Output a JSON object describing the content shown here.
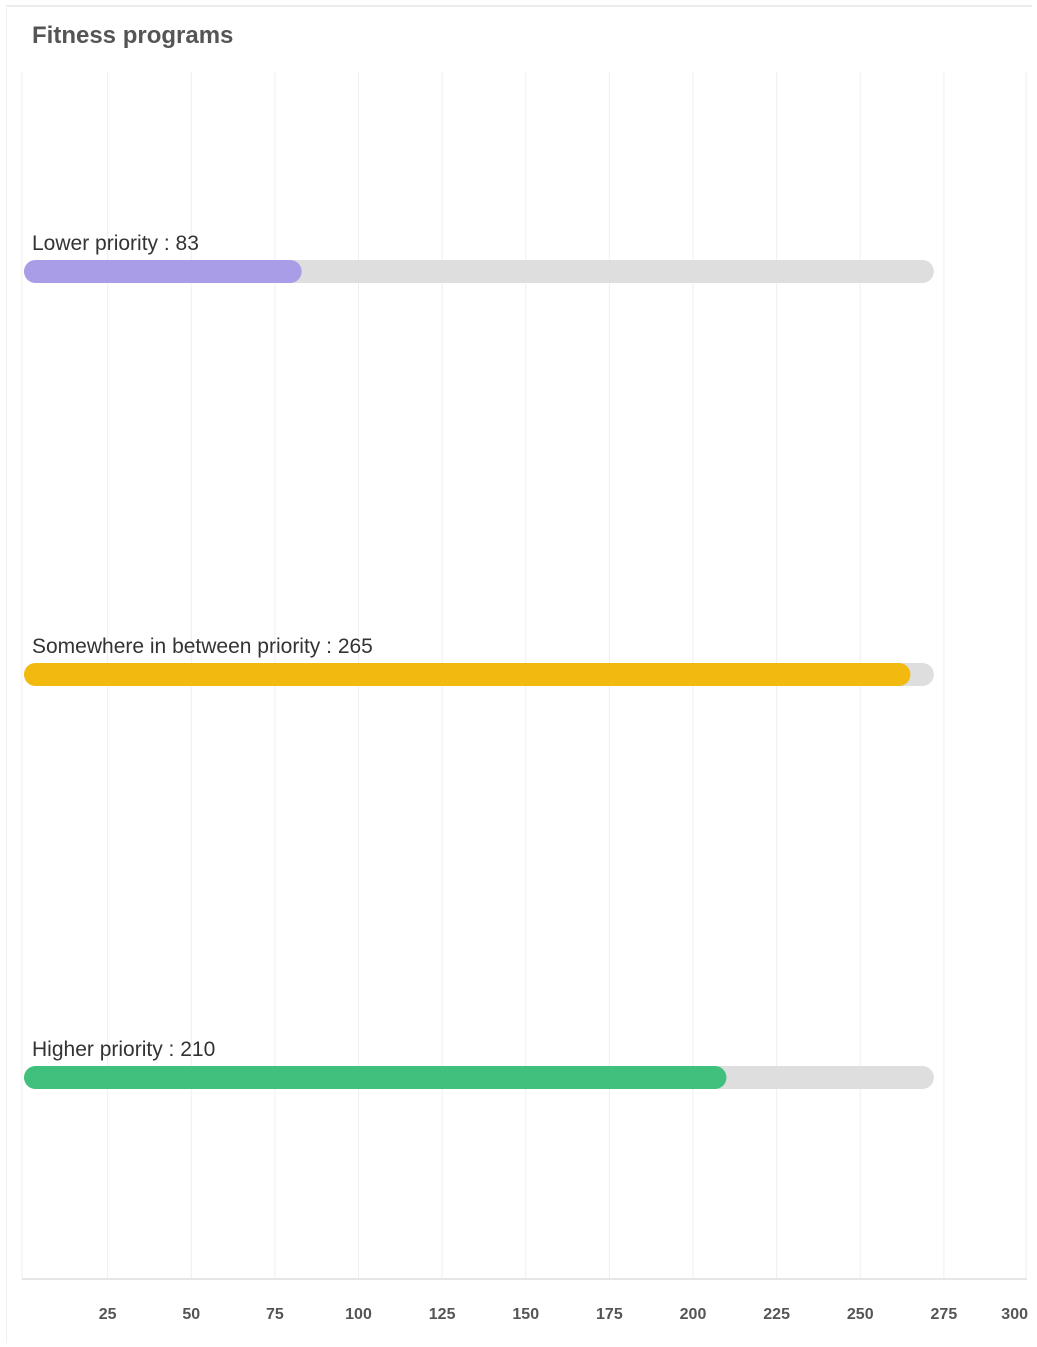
{
  "chart_data": {
    "type": "bar",
    "orientation": "horizontal",
    "title": "Fitness programs",
    "max_value": 272,
    "bars": [
      {
        "name": "Lower priority",
        "value": 83,
        "label": "Lower priority : 83",
        "color": "#a89de6"
      },
      {
        "name": "Somewhere in between priority",
        "value": 265,
        "label": "Somewhere in between priority : 265",
        "color": "#f2b90f"
      },
      {
        "name": "Higher priority",
        "value": 210,
        "label": "Higher priority : 210",
        "color": "#3fc07c"
      }
    ],
    "track_color": "#dedede",
    "x_ticks": [
      25,
      50,
      75,
      100,
      125,
      150,
      175,
      200,
      225,
      250,
      275,
      300
    ],
    "xlim": [
      0,
      300
    ],
    "grid": true
  }
}
